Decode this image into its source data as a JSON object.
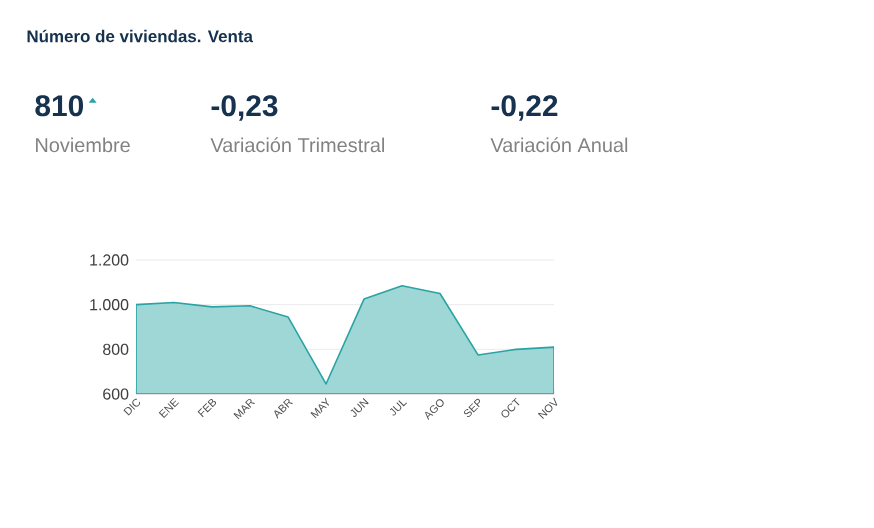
{
  "chart_data": {
    "type": "area",
    "title": "Número de viviendas. Venta",
    "annotations": [
      "810",
      "Noviembre",
      "-0,23",
      "Variación Trimestral",
      "-0,22",
      "Variación Anual"
    ],
    "categories": [
      "DIC",
      "ENE",
      "FEB",
      "MAR",
      "ABR",
      "MAY",
      "JUN",
      "JUL",
      "AGO",
      "SEP",
      "OCT",
      "NOV"
    ],
    "values": [
      1000,
      1010,
      990,
      995,
      945,
      645,
      1025,
      1085,
      1050,
      775,
      800,
      810
    ],
    "color": "#2aa3a3",
    "ylim": [
      600,
      1200
    ],
    "yticks": [
      {
        "value": 600,
        "label": "600"
      },
      {
        "value": 800,
        "label": "800"
      },
      {
        "value": 1000,
        "label": "1.000"
      },
      {
        "value": 1200,
        "label": "1.200"
      }
    ],
    "grid": "y"
  }
}
